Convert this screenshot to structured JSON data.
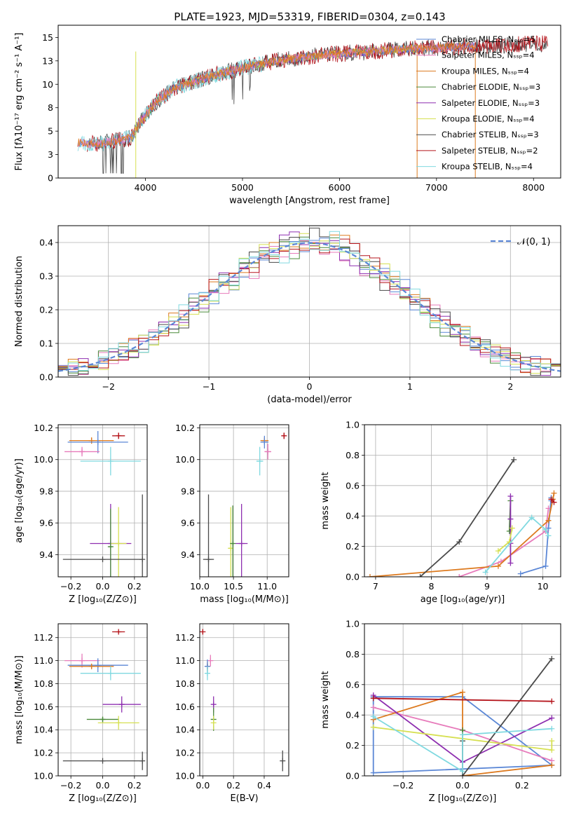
{
  "title": "PLATE=1923, MJD=53319, FIBERID=0304, z=0.143",
  "colors": {
    "Chabrier MILES": "#5b87d6",
    "Salpeter MILES": "#e77bbb",
    "Kroupa MILES": "#dd7a1f",
    "Chabrier ELODIE": "#4a8a3a",
    "Salpeter ELODIE": "#8e2fb0",
    "Kroupa ELODIE": "#d6e052",
    "Chabrier STELIB": "#4a4a4a",
    "Salpeter STELIB": "#b5141b",
    "Kroupa STELIB": "#80d9e0"
  },
  "chart_data": [
    {
      "type": "line",
      "id": "spectrum",
      "xlabel": "wavelength [Angstrom, rest frame]",
      "ylabel": "Flux [fλ10⁻¹⁷ erg cm⁻² s⁻¹ A⁻¹]",
      "xlim": [
        3100,
        8280
      ],
      "ylim": [
        0,
        16.3
      ],
      "xticks": [
        4000,
        5000,
        6000,
        7000,
        8000
      ],
      "yticks": [
        0.0,
        2.5,
        5.0,
        7.5,
        10.0,
        12.5,
        15.0
      ],
      "legend": [
        "Chabrier MILES, Nₛₛₚ=5",
        "Salpeter MILES, Nₛₛₚ=4",
        "Kroupa MILES, Nₛₛₚ=4",
        "Chabrier ELODIE, Nₛₛₚ=3",
        "Salpeter ELODIE, Nₛₛₚ=3",
        "Kroupa ELODIE, Nₛₛₚ=4",
        "Chabrier STELIB, Nₛₛₚ=3",
        "Salpeter STELIB, Nₛₛₚ=2",
        "Kroupa STELIB, Nₛₛₚ=4"
      ],
      "legend_series": [
        "Chabrier MILES",
        "Salpeter MILES",
        "Kroupa MILES",
        "Chabrier ELODIE",
        "Salpeter ELODIE",
        "Kroupa ELODIE",
        "Chabrier STELIB",
        "Salpeter STELIB",
        "Kroupa STELIB"
      ],
      "legend_placement": "upper-right",
      "continuum": [
        [
          3300,
          3.8
        ],
        [
          3500,
          3.6
        ],
        [
          3700,
          4.0
        ],
        [
          3850,
          4.3
        ],
        [
          3950,
          6.0
        ],
        [
          4100,
          8.0
        ],
        [
          4300,
          9.6
        ],
        [
          4500,
          10.3
        ],
        [
          4700,
          10.9
        ],
        [
          4900,
          11.5
        ],
        [
          5100,
          12.0
        ],
        [
          5400,
          12.6
        ],
        [
          5800,
          13.1
        ],
        [
          6200,
          13.4
        ],
        [
          6600,
          13.7
        ],
        [
          7000,
          13.9
        ],
        [
          7500,
          14.1
        ],
        [
          8000,
          14.3
        ],
        [
          8150,
          14.4
        ]
      ],
      "grid": false
    },
    {
      "type": "line",
      "id": "residuals",
      "xlabel": "(data-model)/error",
      "ylabel": "Normed distribution",
      "xlim": [
        -2.5,
        2.5
      ],
      "ylim": [
        0,
        0.45
      ],
      "xticks": [
        -2,
        -1,
        0,
        1,
        2
      ],
      "yticks": [
        0.0,
        0.1,
        0.2,
        0.3,
        0.4
      ],
      "gaussian_label": "𝒩(0, 1)",
      "legend_placement": "upper-right",
      "grid": true
    },
    {
      "type": "scatter",
      "id": "age-vs-Z",
      "xlabel": "Z [log₁₀(Z/Z⊙)]",
      "ylabel": "age  [log₁₀(age/yr)]",
      "xlim": [
        -0.28,
        0.28
      ],
      "ylim": [
        9.26,
        10.22
      ],
      "xticks": [
        -0.2,
        0.0,
        0.2
      ],
      "yticks": [
        9.4,
        9.6,
        9.8,
        10.0,
        10.2
      ],
      "points": [
        {
          "series": "Salpeter STELIB",
          "x": 0.1,
          "y": 10.15,
          "xerr": 0.04,
          "yerr": 0.02
        },
        {
          "series": "Kroupa MILES",
          "x": -0.07,
          "y": 10.12,
          "xerr": 0.14,
          "yerr": 0.02
        },
        {
          "series": "Chabrier MILES",
          "x": -0.03,
          "y": 10.11,
          "xerr": 0.19,
          "yerr": 0.07
        },
        {
          "series": "Salpeter MILES",
          "x": -0.13,
          "y": 10.05,
          "xerr": 0.11,
          "yerr": 0.03
        },
        {
          "series": "Kroupa STELIB",
          "x": 0.05,
          "y": 9.99,
          "xerr": 0.19,
          "yerr": 0.09
        },
        {
          "series": "Salpeter ELODIE",
          "x": 0.05,
          "y": 9.47,
          "xerr": 0.13,
          "yerr": 0.25
        },
        {
          "series": "Kroupa ELODIE",
          "x": 0.1,
          "y": 9.47,
          "xerr": 0.05,
          "yerr": 0.23
        },
        {
          "series": "Chabrier ELODIE",
          "x": 0.05,
          "y": 9.45,
          "xerr": 0.01,
          "yerr": 0.24
        },
        {
          "series": "Chabrier STELIB",
          "x": 0.0,
          "y": 9.37,
          "xerr": 0.25,
          "yerr": 0.0
        },
        {
          "series": "Chabrier STELIB",
          "x": 0.25,
          "y": 9.37,
          "xerr": 0.0,
          "yerr": 0.41
        }
      ],
      "grid": true
    },
    {
      "type": "scatter",
      "id": "age-vs-mass",
      "xlabel": "mass [log₁₀(M/M⊙)]",
      "ylabel": "",
      "xlim": [
        10.0,
        11.32
      ],
      "ylim": [
        9.26,
        10.22
      ],
      "xticks": [
        10.0,
        10.5,
        11.0
      ],
      "yticks": [
        9.4,
        9.6,
        9.8,
        10.0,
        10.2
      ],
      "points": [
        {
          "series": "Salpeter STELIB",
          "x": 11.25,
          "y": 10.15,
          "xerr": 0.02,
          "yerr": 0.02
        },
        {
          "series": "Kroupa MILES",
          "x": 10.96,
          "y": 10.12,
          "xerr": 0.06,
          "yerr": 0.02
        },
        {
          "series": "Chabrier MILES",
          "x": 10.96,
          "y": 10.11,
          "xerr": 0.06,
          "yerr": 0.04
        },
        {
          "series": "Salpeter MILES",
          "x": 11.01,
          "y": 10.05,
          "xerr": 0.05,
          "yerr": 0.05
        },
        {
          "series": "Kroupa STELIB",
          "x": 10.89,
          "y": 9.99,
          "xerr": 0.05,
          "yerr": 0.09
        },
        {
          "series": "Salpeter ELODIE",
          "x": 10.62,
          "y": 9.47,
          "xerr": 0.09,
          "yerr": 0.25
        },
        {
          "series": "Kroupa ELODIE",
          "x": 10.46,
          "y": 9.44,
          "xerr": 0.03,
          "yerr": 0.26
        },
        {
          "series": "Chabrier ELODIE",
          "x": 10.49,
          "y": 9.47,
          "xerr": 0.02,
          "yerr": 0.24
        },
        {
          "series": "Chabrier STELIB",
          "x": 10.13,
          "y": 9.37,
          "xerr": 0.08,
          "yerr": 0.41
        }
      ],
      "grid": true
    },
    {
      "type": "line",
      "id": "massweight-vs-age",
      "xlabel": "age  [log₁₀(age/yr)]",
      "ylabel": "mass weight",
      "xlim": [
        6.8,
        10.32
      ],
      "ylim": [
        0,
        1.0
      ],
      "xticks": [
        7,
        8,
        9,
        10
      ],
      "yticks": [
        0.0,
        0.2,
        0.4,
        0.6,
        0.8,
        1.0
      ],
      "series": [
        {
          "series": "Chabrier MILES",
          "x": [
            9.6,
            10.05,
            10.1,
            10.15,
            10.15
          ],
          "y": [
            0.02,
            0.07,
            0.32,
            0.52,
            0.5
          ]
        },
        {
          "series": "Salpeter MILES",
          "x": [
            8.5,
            9.25,
            10.05,
            10.1
          ],
          "y": [
            0.0,
            0.1,
            0.3,
            0.45
          ]
        },
        {
          "series": "Kroupa MILES",
          "x": [
            6.9,
            9.2,
            10.1,
            10.18,
            10.2
          ],
          "y": [
            0.0,
            0.07,
            0.37,
            0.51,
            0.55
          ]
        },
        {
          "series": "Chabrier ELODIE",
          "x": [
            9.4,
            9.42
          ],
          "y": [
            0.3,
            0.5
          ]
        },
        {
          "series": "Salpeter ELODIE",
          "x": [
            9.42,
            9.42,
            9.42,
            9.42
          ],
          "y": [
            0.09,
            0.22,
            0.38,
            0.53
          ]
        },
        {
          "series": "Kroupa ELODIE",
          "x": [
            9.2,
            9.4,
            9.45
          ],
          "y": [
            0.17,
            0.23,
            0.32
          ]
        },
        {
          "series": "Chabrier STELIB",
          "x": [
            7.8,
            8.5,
            9.48
          ],
          "y": [
            0.0,
            0.23,
            0.77
          ]
        },
        {
          "series": "Salpeter STELIB",
          "x": [
            10.15,
            10.2
          ],
          "y": [
            0.51,
            0.49
          ]
        },
        {
          "series": "Kroupa STELIB",
          "x": [
            8.97,
            9.8,
            10.05,
            10.1
          ],
          "y": [
            0.03,
            0.39,
            0.31,
            0.27
          ]
        }
      ],
      "grid": true
    },
    {
      "type": "scatter",
      "id": "mass-vs-Z",
      "xlabel": "Z [log₁₀(Z/Z⊙)]",
      "ylabel": "mass [log₁₀(M/M⊙)]",
      "xlim": [
        -0.28,
        0.28
      ],
      "ylim": [
        10.0,
        11.32
      ],
      "xticks": [
        -0.2,
        0.0,
        0.2
      ],
      "yticks": [
        10.0,
        10.2,
        10.4,
        10.6,
        10.8,
        11.0,
        11.2
      ],
      "points": [
        {
          "series": "Salpeter STELIB",
          "x": 0.1,
          "y": 11.25,
          "xerr": 0.04,
          "yerr": 0.01
        },
        {
          "series": "Salpeter MILES",
          "x": -0.13,
          "y": 11.0,
          "xerr": 0.11,
          "yerr": 0.06
        },
        {
          "series": "Chabrier MILES",
          "x": -0.03,
          "y": 10.96,
          "xerr": 0.19,
          "yerr": 0.06
        },
        {
          "series": "Kroupa MILES",
          "x": -0.07,
          "y": 10.95,
          "xerr": 0.14,
          "yerr": 0.02
        },
        {
          "series": "Kroupa STELIB",
          "x": 0.05,
          "y": 10.89,
          "xerr": 0.19,
          "yerr": 0.06
        },
        {
          "series": "Salpeter ELODIE",
          "x": 0.12,
          "y": 10.62,
          "xerr": 0.12,
          "yerr": 0.07
        },
        {
          "series": "Chabrier ELODIE",
          "x": 0.0,
          "y": 10.49,
          "xerr": 0.1,
          "yerr": 0.02
        },
        {
          "series": "Kroupa ELODIE",
          "x": 0.1,
          "y": 10.46,
          "xerr": 0.13,
          "yerr": 0.06
        },
        {
          "series": "Chabrier STELIB",
          "x": 0.0,
          "y": 10.13,
          "xerr": 0.25,
          "yerr": 0.0
        },
        {
          "series": "Chabrier STELIB",
          "x": 0.25,
          "y": 10.13,
          "xerr": 0.0,
          "yerr": 0.08
        }
      ],
      "grid": true
    },
    {
      "type": "scatter",
      "id": "mass-vs-ebv",
      "xlabel": "E(B-V)",
      "ylabel": "",
      "xlim": [
        -0.02,
        0.56
      ],
      "ylim": [
        10.0,
        11.32
      ],
      "xticks": [
        0.0,
        0.2,
        0.4
      ],
      "yticks": [
        10.0,
        10.2,
        10.4,
        10.6,
        10.8,
        11.0,
        11.2
      ],
      "points": [
        {
          "series": "Salpeter STELIB",
          "x": 0.0,
          "y": 11.25,
          "xerr": 0.0,
          "yerr": 0.02
        },
        {
          "series": "Salpeter MILES",
          "x": 0.05,
          "y": 11.0,
          "xerr": 0.0,
          "yerr": 0.05
        },
        {
          "series": "Kroupa MILES",
          "x": 0.03,
          "y": 10.95,
          "xerr": 0.0,
          "yerr": 0.04
        },
        {
          "series": "Chabrier MILES",
          "x": 0.03,
          "y": 10.95,
          "xerr": 0.0,
          "yerr": 0.06
        },
        {
          "series": "Kroupa STELIB",
          "x": 0.03,
          "y": 10.89,
          "xerr": 0.0,
          "yerr": 0.06
        },
        {
          "series": "Salpeter ELODIE",
          "x": 0.07,
          "y": 10.62,
          "xerr": 0.0,
          "yerr": 0.07
        },
        {
          "series": "Chabrier ELODIE",
          "x": 0.07,
          "y": 10.49,
          "xerr": 0.0,
          "yerr": 0.1
        },
        {
          "series": "Kroupa ELODIE",
          "x": 0.07,
          "y": 10.46,
          "xerr": 0.0,
          "yerr": 0.06
        },
        {
          "series": "Chabrier STELIB",
          "x": 0.52,
          "y": 10.13,
          "xerr": 0.0,
          "yerr": 0.09
        }
      ],
      "grid": true
    },
    {
      "type": "line",
      "id": "massweight-vs-Z",
      "xlabel": "Z [log₁₀(Z/Z⊙)]",
      "ylabel": "mass weight",
      "xlim": [
        -0.33,
        0.33
      ],
      "ylim": [
        0,
        1.0
      ],
      "xticks": [
        -0.2,
        0.0,
        0.2
      ],
      "yticks": [
        0.0,
        0.2,
        0.4,
        0.6,
        0.8,
        1.0
      ],
      "series": [
        {
          "series": "Chabrier MILES",
          "x": [
            -0.3,
            0.0,
            0.3,
            -0.3,
            -0.3
          ],
          "y": [
            0.52,
            0.52,
            0.07,
            0.02,
            0.52
          ]
        },
        {
          "series": "Salpeter MILES",
          "x": [
            -0.3,
            0.0,
            0.3
          ],
          "y": [
            0.45,
            0.3,
            0.1
          ]
        },
        {
          "series": "Kroupa MILES",
          "x": [
            -0.3,
            0.0,
            0.0,
            0.3
          ],
          "y": [
            0.37,
            0.55,
            0.0,
            0.07
          ]
        },
        {
          "series": "Chabrier ELODIE",
          "x": [
            0.0,
            0.0
          ],
          "y": [
            0.3,
            0.23
          ]
        },
        {
          "series": "Salpeter ELODIE",
          "x": [
            -0.3,
            0.0,
            0.3
          ],
          "y": [
            0.53,
            0.09,
            0.38
          ]
        },
        {
          "series": "Kroupa ELODIE",
          "x": [
            -0.3,
            0.3,
            0.3
          ],
          "y": [
            0.32,
            0.17,
            0.23
          ]
        },
        {
          "series": "Chabrier STELIB",
          "x": [
            0.0,
            0.0,
            0.3
          ],
          "y": [
            0.23,
            0.0,
            0.77
          ]
        },
        {
          "series": "Salpeter STELIB",
          "x": [
            -0.3,
            0.3
          ],
          "y": [
            0.51,
            0.49
          ]
        },
        {
          "series": "Kroupa STELIB",
          "x": [
            -0.3,
            0.0,
            0.0,
            0.3
          ],
          "y": [
            0.39,
            0.03,
            0.27,
            0.31
          ]
        }
      ],
      "grid": true
    }
  ]
}
